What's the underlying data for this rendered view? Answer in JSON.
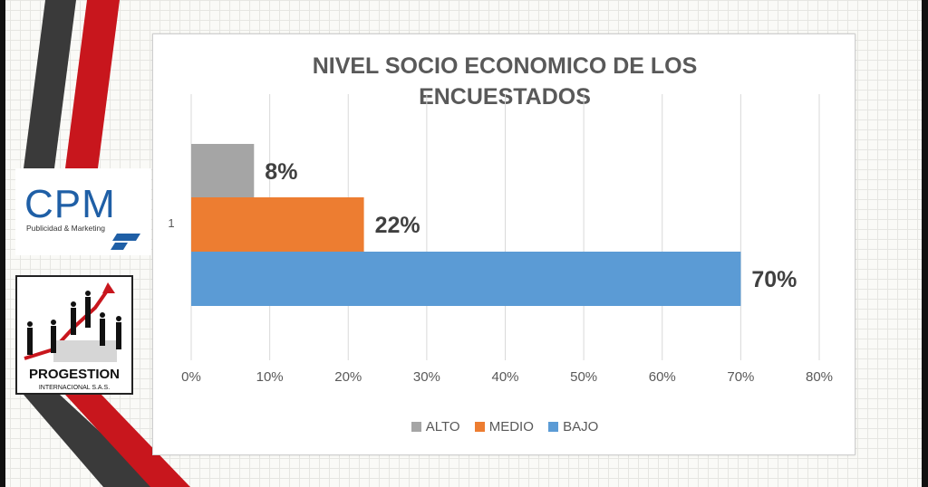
{
  "chart_data": {
    "type": "bar",
    "orientation": "horizontal",
    "title_lines": [
      "NIVEL SOCIO ECONOMICO DE LOS",
      "ENCUESTADOS"
    ],
    "categories": [
      "1"
    ],
    "series": [
      {
        "name": "ALTO",
        "values": [
          8
        ],
        "label": "8%",
        "color": "#a5a5a5"
      },
      {
        "name": "MEDIO",
        "values": [
          22
        ],
        "label": "22%",
        "color": "#ed7d31"
      },
      {
        "name": "BAJO",
        "values": [
          70
        ],
        "label": "70%",
        "color": "#5b9bd5"
      }
    ],
    "x_ticks": [
      "0%",
      "10%",
      "20%",
      "30%",
      "40%",
      "50%",
      "60%",
      "70%",
      "80%"
    ],
    "xlim": [
      0,
      80
    ],
    "grid": true,
    "legend_position": "bottom"
  },
  "logos": {
    "cpm": {
      "name": "CPM",
      "tagline": "Publicidad & Marketing"
    },
    "progestion": {
      "name": "PROGESTION",
      "tagline": "INTERNACIONAL S.A.S."
    }
  },
  "colors": {
    "stripe_red": "#c8161d",
    "stripe_dark": "#3a3a3a",
    "cpm_blue": "#1f5fa6"
  }
}
